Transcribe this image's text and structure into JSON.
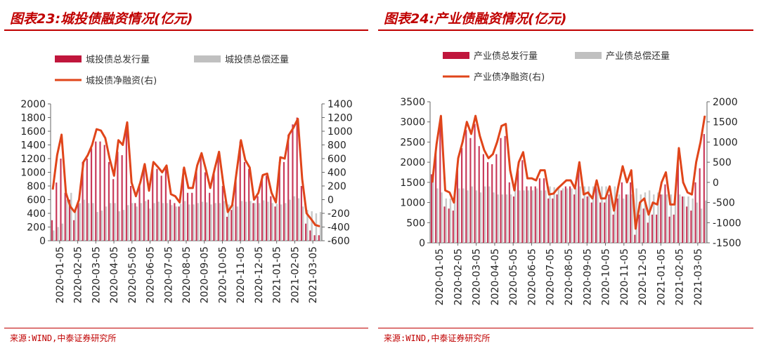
{
  "colors": {
    "accent": "#c00000",
    "issue": "#c0163c",
    "repay": "#c0c0c0",
    "net": "#e0451a"
  },
  "chart_data": [
    {
      "id": "left",
      "type": "bar",
      "fig_title": "图表23:城投债融资情况(亿元)",
      "source": "来源:WIND,中泰证券研究所",
      "legend": {
        "issue": "城投债总发行量",
        "repay": "城投债总偿还量",
        "net": "城投债净融资(右)"
      },
      "y_left": {
        "min": 0,
        "max": 2000,
        "step": 200,
        "ticks": [
          "0",
          "200",
          "400",
          "600",
          "800",
          "1000",
          "1200",
          "1400",
          "1600",
          "1800",
          "2000"
        ]
      },
      "y_right": {
        "min": -600,
        "max": 1400,
        "step": 200,
        "ticks": [
          "-600",
          "-400",
          "-200",
          "0",
          "200",
          "400",
          "600",
          "800",
          "1000",
          "1200",
          "1400"
        ]
      },
      "x_ticks": [
        "2020-01-05",
        "2020-02-05",
        "2020-03-05",
        "2020-04-05",
        "2020-05-05",
        "2020-06-05",
        "2020-07-05",
        "2020-08-05",
        "2020-09-05",
        "2020-10-05",
        "2020-11-05",
        "2020-12-05",
        "2021-01-05",
        "2021-02-05",
        "2021-03-05"
      ],
      "net": [
        150,
        650,
        950,
        100,
        -100,
        -180,
        0,
        550,
        650,
        800,
        1030,
        1010,
        900,
        600,
        350,
        870,
        800,
        1130,
        250,
        50,
        250,
        520,
        130,
        550,
        480,
        400,
        500,
        80,
        50,
        -40,
        470,
        170,
        170,
        500,
        680,
        440,
        170,
        450,
        700,
        220,
        -180,
        -80,
        400,
        870,
        580,
        470,
        0,
        100,
        360,
        380,
        100,
        -40,
        620,
        600,
        950,
        1050,
        1180,
        300,
        -200,
        -280,
        -370,
        -390
      ],
      "issue": [
        300,
        850,
        1200,
        700,
        600,
        300,
        550,
        1150,
        1200,
        1350,
        1450,
        1450,
        1400,
        1150,
        900,
        1300,
        1250,
        1650,
        800,
        550,
        800,
        1100,
        600,
        1100,
        1050,
        950,
        1050,
        600,
        550,
        500,
        1050,
        700,
        700,
        1050,
        1250,
        1000,
        700,
        1000,
        1250,
        800,
        350,
        450,
        900,
        1450,
        1150,
        1050,
        550,
        650,
        950,
        950,
        650,
        500,
        1150,
        1150,
        1550,
        1700,
        1800,
        800,
        250,
        150,
        80,
        80
      ],
      "repay": [
        150,
        200,
        250,
        600,
        700,
        480,
        550,
        600,
        550,
        550,
        420,
        440,
        500,
        550,
        550,
        430,
        450,
        520,
        550,
        500,
        550,
        580,
        470,
        550,
        570,
        550,
        550,
        520,
        500,
        540,
        580,
        530,
        530,
        550,
        570,
        560,
        530,
        550,
        550,
        580,
        530,
        530,
        500,
        580,
        570,
        580,
        550,
        550,
        590,
        570,
        550,
        540,
        530,
        550,
        600,
        650,
        620,
        500,
        450,
        430,
        400,
        420
      ]
    },
    {
      "id": "right",
      "type": "bar",
      "fig_title": "图表24:产业债融资情况(亿元)",
      "source": "来源:WIND,中泰证券研究所",
      "legend": {
        "issue": "产业债总发行量",
        "repay": "产业债总偿还量",
        "net": "产业债净融资(右)"
      },
      "y_left": {
        "min": 0,
        "max": 3500,
        "step": 500,
        "ticks": [
          "0",
          "500",
          "1000",
          "1500",
          "2000",
          "2500",
          "3000",
          "3500"
        ]
      },
      "y_right": {
        "min": -1500,
        "max": 2000,
        "step": 500,
        "ticks": [
          "-1500",
          "-1000",
          "-500",
          "0",
          "500",
          "1000",
          "1500",
          "2000"
        ]
      },
      "x_ticks": [
        "2020-01-05",
        "2020-02-05",
        "2020-03-05",
        "2020-04-05",
        "2020-05-05",
        "2020-06-05",
        "2020-07-05",
        "2020-08-05",
        "2020-09-05",
        "2020-10-05",
        "2020-11-05",
        "2020-12-05",
        "2021-01-05",
        "2021-02-05",
        "2021-03-05"
      ],
      "net": [
        0,
        950,
        1650,
        -200,
        -250,
        -500,
        600,
        1000,
        1500,
        1200,
        1650,
        1150,
        800,
        600,
        700,
        1000,
        1400,
        1450,
        300,
        -200,
        500,
        750,
        100,
        100,
        50,
        300,
        300,
        -300,
        -280,
        -150,
        -50,
        50,
        50,
        -150,
        500,
        -300,
        -250,
        -400,
        50,
        -400,
        -400,
        -100,
        -700,
        -100,
        400,
        0,
        300,
        -1150,
        -500,
        -400,
        -800,
        -500,
        -550,
        0,
        250,
        -550,
        -550,
        850,
        0,
        -250,
        -300,
        500,
        1000,
        1650
      ],
      "issue": [
        1700,
        2300,
        2900,
        900,
        850,
        800,
        1950,
        2350,
        2800,
        2600,
        2950,
        2400,
        2200,
        2000,
        1950,
        2200,
        2600,
        2650,
        1500,
        1150,
        1800,
        2050,
        1400,
        1400,
        1400,
        1600,
        1600,
        1100,
        1100,
        1200,
        1300,
        1400,
        1400,
        1200,
        1900,
        1100,
        1150,
        1000,
        1400,
        1000,
        1000,
        1200,
        700,
        1100,
        1500,
        1200,
        1500,
        200,
        700,
        850,
        500,
        700,
        700,
        1200,
        1450,
        650,
        700,
        2050,
        1150,
        900,
        800,
        1500,
        1850,
        2700
      ],
      "repay": [
        1700,
        1350,
        1250,
        1100,
        1100,
        1300,
        1350,
        1350,
        1300,
        1400,
        1300,
        1250,
        1400,
        1400,
        1250,
        1200,
        1200,
        1200,
        1200,
        1350,
        1300,
        1300,
        1300,
        1300,
        1350,
        1300,
        1300,
        1400,
        1380,
        1350,
        1350,
        1350,
        1350,
        1350,
        1400,
        1400,
        1400,
        1400,
        1350,
        1400,
        1400,
        1300,
        1400,
        1200,
        1100,
        1200,
        1200,
        1350,
        1200,
        1250,
        1300,
        1200,
        1250,
        1200,
        1200,
        1200,
        1250,
        1200,
        1150,
        1150,
        1100,
        1000,
        850,
        1050
      ]
    }
  ]
}
